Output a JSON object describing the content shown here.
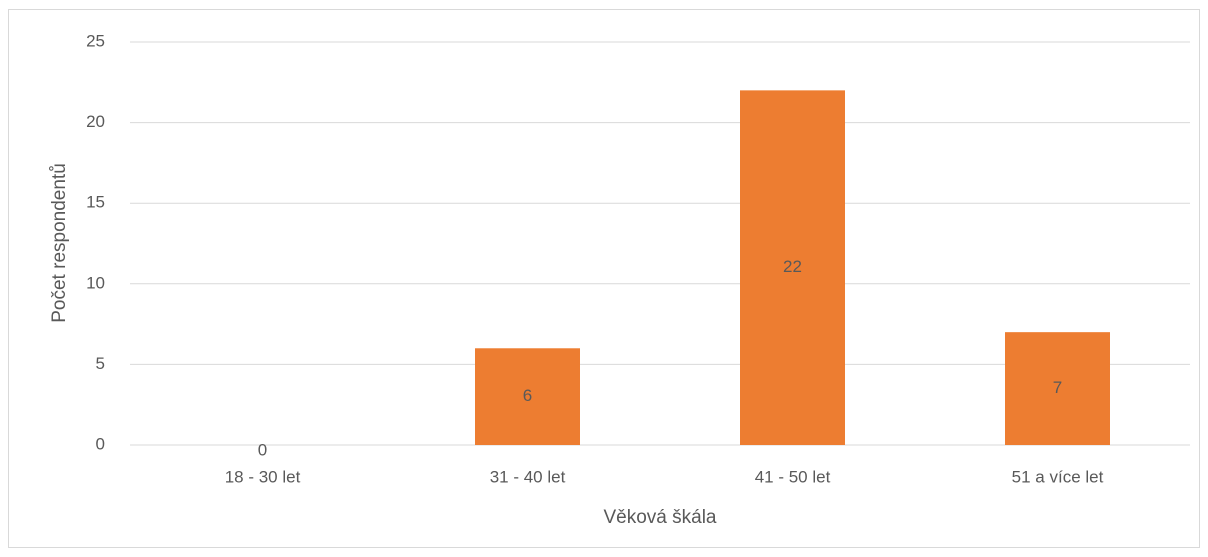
{
  "chart_data": {
    "type": "bar",
    "categories": [
      "18 - 30 let",
      "31 - 40 let",
      "41 - 50 let",
      "51 a více let"
    ],
    "values": [
      0,
      6,
      22,
      7
    ],
    "color": "#ed7d31",
    "xlabel": "Věková škála",
    "ylabel": "Počet respondentů",
    "ylim": [
      0,
      25
    ],
    "yticks": [
      0,
      5,
      10,
      15,
      20,
      25
    ],
    "grid": true
  }
}
